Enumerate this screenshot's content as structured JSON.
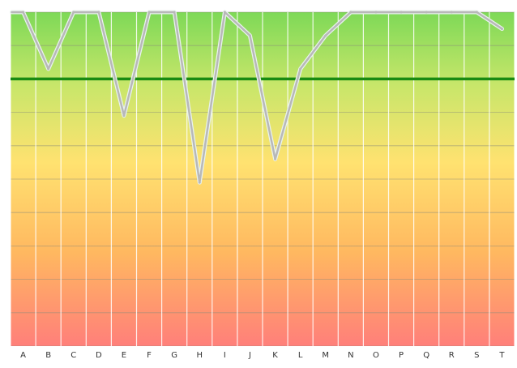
{
  "chart_data": {
    "type": "line",
    "categories": [
      "A",
      "B",
      "C",
      "D",
      "E",
      "F",
      "G",
      "H",
      "I",
      "J",
      "K",
      "L",
      "M",
      "N",
      "O",
      "P",
      "Q",
      "R",
      "S",
      "T"
    ],
    "series": [
      {
        "values": [
          100,
          83,
          100,
          100,
          69,
          100,
          100,
          49,
          100,
          93,
          56,
          83,
          93,
          100,
          100,
          100,
          100,
          100,
          100,
          95
        ]
      }
    ],
    "threshold": 80,
    "ylim": [
      0,
      100
    ],
    "grid": true,
    "colors": {
      "threshold": "#1a8a12",
      "line": "#b8b8b8",
      "line_outline": "#e8f2ee",
      "grid": "#8a8a7a",
      "gradient": [
        "#7ed957",
        "#c8e66a",
        "#ffe270",
        "#ffb860",
        "#ff7f7a"
      ]
    }
  }
}
